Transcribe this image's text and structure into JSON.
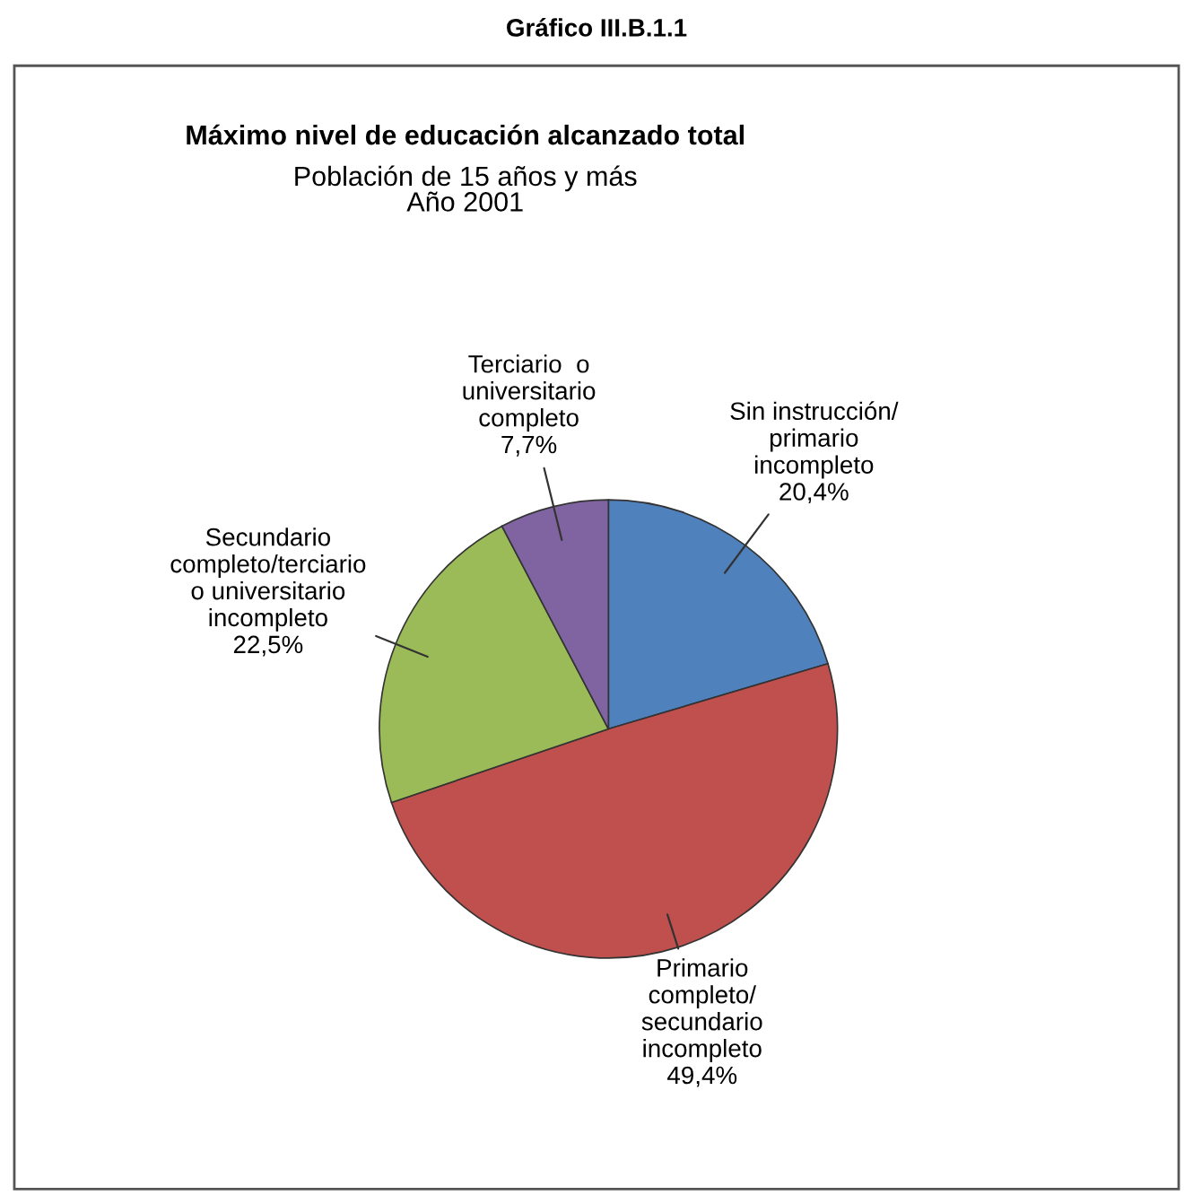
{
  "chart_data": {
    "type": "pie",
    "title": "Máximo nivel de educación alcanzado total",
    "subtitle": "Población de 15 años y más\nAño 2001",
    "annotations": [
      "Gráfico III.B.1.1"
    ],
    "categories": [
      "Sin instrucción/\nprimario\nincompleto",
      "Primario\ncompleto/\nsecundario\nincompleto",
      "Secundario\ncompleto/terciario\no universitario\nincompleto",
      "Terciario  o\nuniversitario\ncompleto"
    ],
    "values": [
      20.4,
      49.4,
      22.5,
      7.7
    ],
    "value_labels": [
      "20,4%",
      "49,4%",
      "22,5%",
      "7,7%"
    ],
    "colors": [
      "#4f81bd",
      "#c0504d",
      "#9bbb59",
      "#8064a2"
    ]
  }
}
